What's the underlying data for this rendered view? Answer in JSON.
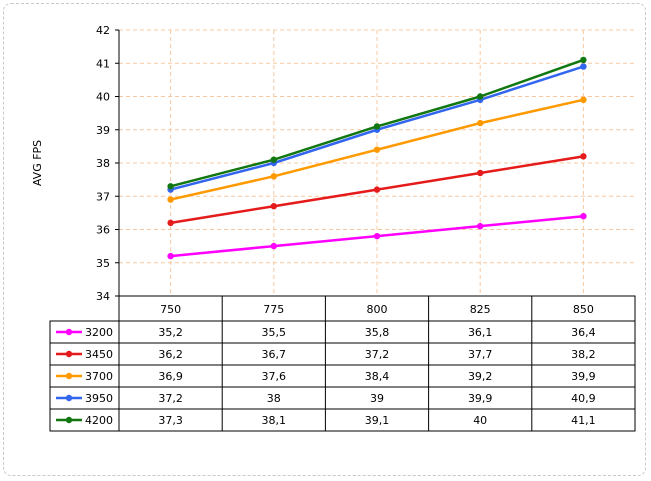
{
  "chart_data": {
    "type": "line",
    "ylabel": "AVG FPS",
    "xlabel": "",
    "ylim": [
      34,
      42
    ],
    "yticks": [
      34,
      35,
      36,
      37,
      38,
      39,
      40,
      41,
      42
    ],
    "categories": [
      "750",
      "775",
      "800",
      "825",
      "850"
    ],
    "grid": true,
    "legend": "data-table",
    "series": [
      {
        "name": "3200",
        "color": "#ff00ff",
        "values": [
          35.2,
          35.5,
          35.8,
          36.1,
          36.4
        ],
        "labels": [
          "35,2",
          "35,5",
          "35,8",
          "36,1",
          "36,4"
        ]
      },
      {
        "name": "3450",
        "color": "#e51a1a",
        "values": [
          36.2,
          36.7,
          37.2,
          37.7,
          38.2
        ],
        "labels": [
          "36,2",
          "36,7",
          "37,2",
          "37,7",
          "38,2"
        ]
      },
      {
        "name": "3700",
        "color": "#ff9900",
        "values": [
          36.9,
          37.6,
          38.4,
          39.2,
          39.9
        ],
        "labels": [
          "36,9",
          "37,6",
          "38,4",
          "39,2",
          "39,9"
        ]
      },
      {
        "name": "3950",
        "color": "#3366ee",
        "values": [
          37.2,
          38,
          39,
          39.9,
          40.9
        ],
        "labels": [
          "37,2",
          "38",
          "39",
          "39,9",
          "40,9"
        ]
      },
      {
        "name": "4200",
        "color": "#117711",
        "values": [
          37.3,
          38.1,
          39.1,
          40,
          41.1
        ],
        "labels": [
          "37,3",
          "38,1",
          "39,1",
          "40",
          "41,1"
        ]
      }
    ]
  }
}
